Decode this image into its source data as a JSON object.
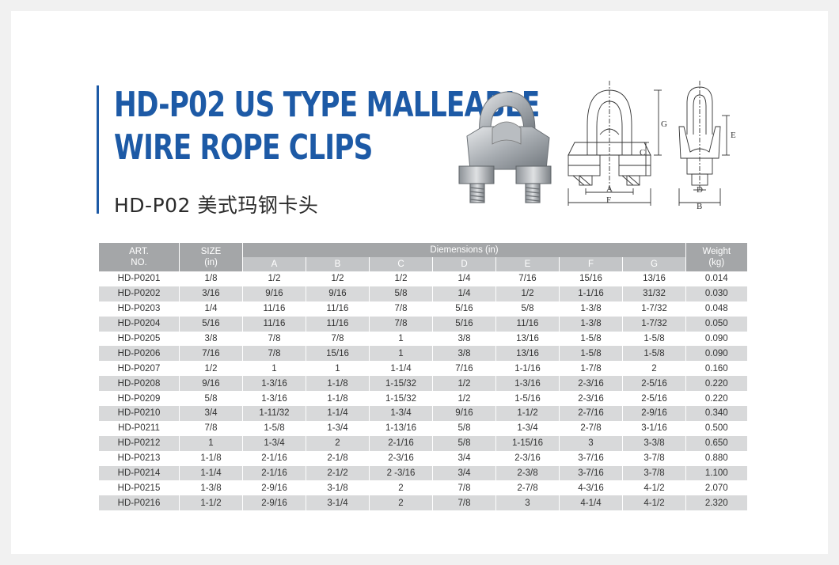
{
  "title_lines": [
    "HD-P02 US TYPE MALLEABLE",
    "WIRE ROPE CLIPS"
  ],
  "subtitle": "HD-P02 美式玛钢卡头",
  "drawing_labels": [
    "G",
    "C",
    "A",
    "F",
    "E",
    "D",
    "B"
  ],
  "colors": {
    "title_blue": "#1d5aa6",
    "header_gray": "#a4a6a8",
    "stripe_gray": "#d8d9da"
  },
  "table": {
    "col_art": [
      "ART.",
      "NO."
    ],
    "col_size": [
      "SIZE",
      "(in)"
    ],
    "col_dims": "Diemensions (in)",
    "col_weight": [
      "Weight",
      "(kg)"
    ],
    "dim_letters": [
      "A",
      "B",
      "C",
      "D",
      "E",
      "F",
      "G"
    ],
    "rows": [
      [
        "HD-P0201",
        "1/8",
        "1/2",
        "1/2",
        "1/2",
        "1/4",
        "7/16",
        "15/16",
        "13/16",
        "0.014"
      ],
      [
        "HD-P0202",
        "3/16",
        "9/16",
        "9/16",
        "5/8",
        "1/4",
        "1/2",
        "1-1/16",
        "31/32",
        "0.030"
      ],
      [
        "HD-P0203",
        "1/4",
        "11/16",
        "11/16",
        "7/8",
        "5/16",
        "5/8",
        "1-3/8",
        "1-7/32",
        "0.048"
      ],
      [
        "HD-P0204",
        "5/16",
        "11/16",
        "11/16",
        "7/8",
        "5/16",
        "11/16",
        "1-3/8",
        "1-7/32",
        "0.050"
      ],
      [
        "HD-P0205",
        "3/8",
        "7/8",
        "7/8",
        "1",
        "3/8",
        "13/16",
        "1-5/8",
        "1-5/8",
        "0.090"
      ],
      [
        "HD-P0206",
        "7/16",
        "7/8",
        "15/16",
        "1",
        "3/8",
        "13/16",
        "1-5/8",
        "1-5/8",
        "0.090"
      ],
      [
        "HD-P0207",
        "1/2",
        "1",
        "1",
        "1-1/4",
        "7/16",
        "1-1/16",
        "1-7/8",
        "2",
        "0.160"
      ],
      [
        "HD-P0208",
        "9/16",
        "1-3/16",
        "1-1/8",
        "1-15/32",
        "1/2",
        "1-3/16",
        "2-3/16",
        "2-5/16",
        "0.220"
      ],
      [
        "HD-P0209",
        "5/8",
        "1-3/16",
        "1-1/8",
        "1-15/32",
        "1/2",
        "1-5/16",
        "2-3/16",
        "2-5/16",
        "0.220"
      ],
      [
        "HD-P0210",
        "3/4",
        "1-11/32",
        "1-1/4",
        "1-3/4",
        "9/16",
        "1-1/2",
        "2-7/16",
        "2-9/16",
        "0.340"
      ],
      [
        "HD-P0211",
        "7/8",
        "1-5/8",
        "1-3/4",
        "1-13/16",
        "5/8",
        "1-3/4",
        "2-7/8",
        "3-1/16",
        "0.500"
      ],
      [
        "HD-P0212",
        "1",
        "1-3/4",
        "2",
        "2-1/16",
        "5/8",
        "1-15/16",
        "3",
        "3-3/8",
        "0.650"
      ],
      [
        "HD-P0213",
        "1-1/8",
        "2-1/16",
        "2-1/8",
        "2-3/16",
        "3/4",
        "2-3/16",
        "3-7/16",
        "3-7/8",
        "0.880"
      ],
      [
        "HD-P0214",
        "1-1/4",
        "2-1/16",
        "2-1/2",
        "2 -3/16",
        "3/4",
        "2-3/8",
        "3-7/16",
        "3-7/8",
        "1.100"
      ],
      [
        "HD-P0215",
        "1-3/8",
        "2-9/16",
        "3-1/8",
        "2",
        "7/8",
        "2-7/8",
        "4-3/16",
        "4-1/2",
        "2.070"
      ],
      [
        "HD-P0216",
        "1-1/2",
        "2-9/16",
        "3-1/4",
        "2",
        "7/8",
        "3",
        "4-1/4",
        "4-1/2",
        "2.320"
      ]
    ]
  }
}
